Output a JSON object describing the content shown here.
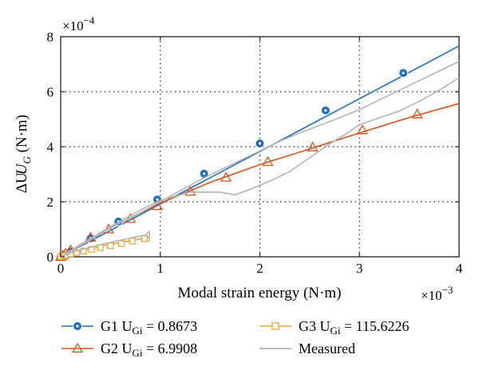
{
  "chart_data": {
    "type": "line",
    "x_exponent_label": "×10",
    "x_exponent_power": "−3",
    "y_exponent_label": "×10",
    "y_exponent_power": "−4",
    "xlabel": "Modal strain energy (N·m)",
    "ylabel_main": "ΔU",
    "ylabel_sub": "G",
    "ylabel_unit": " (N·m)",
    "xlim": [
      0,
      4
    ],
    "ylim": [
      0,
      8
    ],
    "x_ticks": [
      0,
      1,
      2,
      3,
      4
    ],
    "y_ticks": [
      0,
      2,
      4,
      6,
      8
    ],
    "x_tick_labels": [
      "0",
      "1",
      "2",
      "3",
      "4"
    ],
    "y_tick_labels": [
      "0",
      "2",
      "4",
      "6",
      "8"
    ],
    "grid": true,
    "series": [
      {
        "name": "G1 U",
        "name_sub": "Gi",
        "name_value": " = 0.8673",
        "color": "#1f6fc0",
        "marker": "circle",
        "line_x": [
          0,
          4
        ],
        "line_y": [
          0,
          7.66
        ],
        "marker_x": [
          0.0,
          0.012,
          0.03,
          0.1,
          0.3,
          0.58,
          0.97,
          1.44,
          2.0,
          2.66,
          3.44
        ],
        "marker_y": [
          0.0,
          0.02,
          0.06,
          0.19,
          0.67,
          1.28,
          2.08,
          3.02,
          4.12,
          5.32,
          6.68
        ]
      },
      {
        "name": "G2 U",
        "name_sub": "Gi",
        "name_value": " = 6.9908",
        "color": "#d95319",
        "marker": "triangle",
        "line_x": [
          0,
          0.2,
          0.5,
          1.0,
          1.5,
          2.0,
          2.5,
          3.0,
          3.5,
          4.0
        ],
        "line_y": [
          0,
          0.45,
          1.05,
          1.95,
          2.7,
          3.35,
          3.92,
          4.5,
          5.06,
          5.57
        ],
        "marker_x": [
          0.0,
          0.02,
          0.05,
          0.1,
          0.3,
          0.48,
          0.7,
          0.97,
          1.3,
          1.66,
          2.08,
          2.53,
          3.03,
          3.58
        ],
        "marker_y": [
          0.0,
          0.05,
          0.12,
          0.24,
          0.7,
          1.0,
          1.38,
          1.85,
          2.37,
          2.88,
          3.45,
          3.98,
          4.6,
          5.18
        ]
      },
      {
        "name": "G3 U",
        "name_sub": "Gi",
        "name_value": " = 115.6226",
        "color": "#e6a52a",
        "marker": "square",
        "line_x": [
          0,
          0.2,
          0.4,
          0.6,
          0.8,
          0.89
        ],
        "line_y": [
          0,
          0.2,
          0.38,
          0.52,
          0.65,
          0.72
        ],
        "marker_x": [
          0.0,
          0.02,
          0.05,
          0.1,
          0.16,
          0.23,
          0.31,
          0.4,
          0.5,
          0.61,
          0.72,
          0.84
        ],
        "marker_y": [
          0.0,
          0.02,
          0.05,
          0.1,
          0.15,
          0.21,
          0.27,
          0.33,
          0.4,
          0.48,
          0.57,
          0.66
        ]
      },
      {
        "name": "Measured",
        "color": "#b3b3b3",
        "lines": [
          {
            "x": [
              0,
              0.2,
              0.5,
              0.8,
              1.0,
              1.2,
              1.4,
              1.6,
              1.8,
              2.0,
              2.2,
              2.4,
              2.6,
              2.8,
              3.0,
              3.2,
              3.4,
              3.6,
              3.8,
              4.0
            ],
            "y": [
              0,
              0.4,
              1.05,
              1.6,
              2.0,
              2.4,
              2.8,
              3.15,
              3.5,
              3.85,
              4.2,
              4.5,
              4.78,
              5.05,
              5.35,
              5.7,
              6.05,
              6.4,
              6.75,
              7.1
            ]
          },
          {
            "x": [
              0,
              0.2,
              0.5,
              0.8,
              1.0,
              1.3,
              1.6,
              1.75,
              1.9,
              2.1,
              2.3,
              2.5,
              2.7,
              2.9,
              3.0,
              3.2,
              3.4,
              3.6,
              3.8,
              4.0
            ],
            "y": [
              0,
              0.45,
              1.1,
              1.7,
              2.05,
              2.35,
              2.35,
              2.25,
              2.45,
              2.75,
              3.1,
              3.6,
              4.1,
              4.55,
              4.8,
              5.05,
              5.3,
              5.65,
              6.05,
              6.5
            ]
          },
          {
            "x": [
              0,
              0.15,
              0.3,
              0.45,
              0.6,
              0.75,
              0.85,
              0.89,
              0.89
            ],
            "y": [
              0,
              0.2,
              0.35,
              0.48,
              0.6,
              0.72,
              0.78,
              0.92,
              0.55
            ]
          }
        ]
      }
    ],
    "legend_position": "bottom"
  }
}
